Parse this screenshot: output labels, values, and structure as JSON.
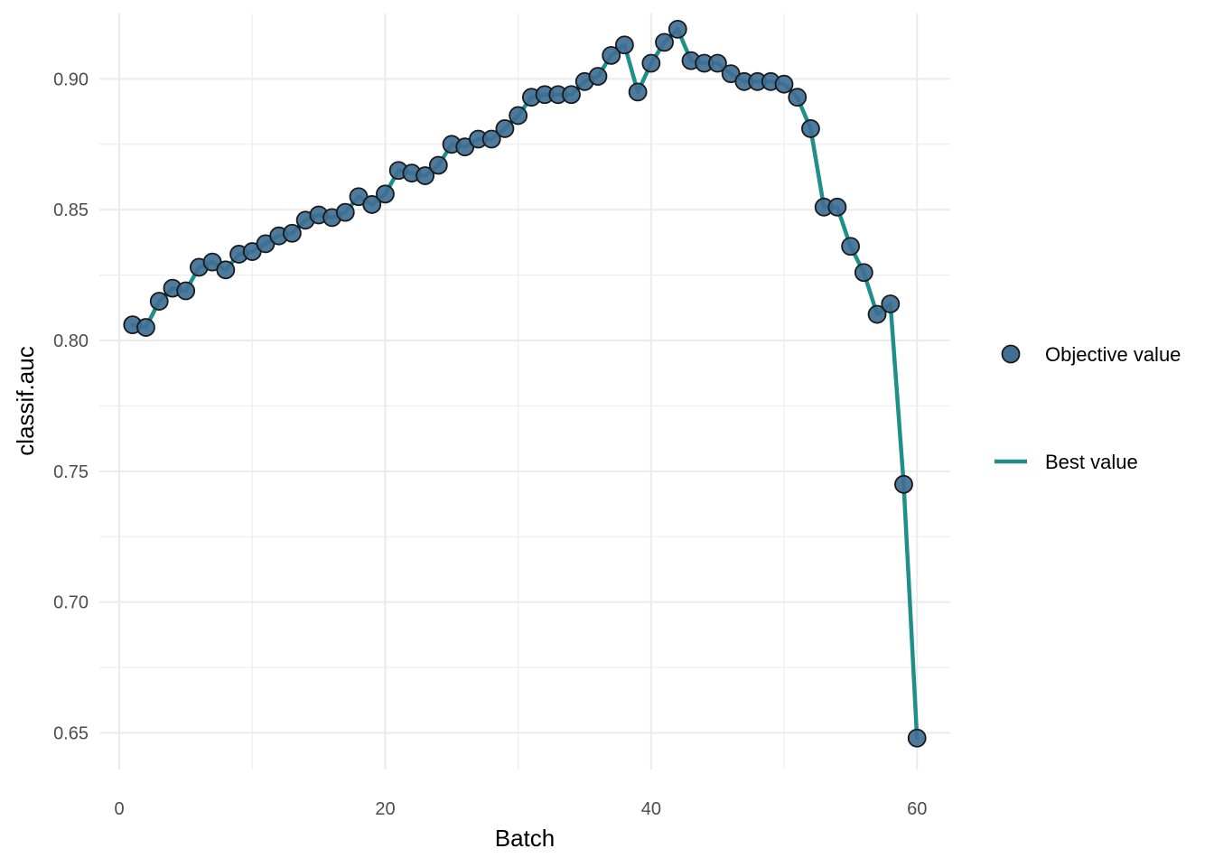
{
  "chart_data": {
    "type": "line",
    "title": "",
    "xlabel": "Batch",
    "ylabel": "classif.auc",
    "xlim": [
      -1.5,
      62.5
    ],
    "ylim": [
      0.636,
      0.925
    ],
    "x_ticks": [
      0,
      20,
      40,
      60
    ],
    "x_tick_labels": [
      "0",
      "20",
      "40",
      "60"
    ],
    "y_ticks": [
      0.65,
      0.7,
      0.75,
      0.8,
      0.85,
      0.9
    ],
    "y_tick_labels": [
      "0.65",
      "0.70",
      "0.75",
      "0.80",
      "0.85",
      "0.90"
    ],
    "grid": true,
    "legend_position": "right",
    "colors": {
      "points": "#3f6f95",
      "point_stroke": "#1a1a1a",
      "line": "#1f8f8a",
      "grid": "#ebebeb"
    },
    "x": [
      1,
      2,
      3,
      4,
      5,
      6,
      7,
      8,
      9,
      10,
      11,
      12,
      13,
      14,
      15,
      16,
      17,
      18,
      19,
      20,
      21,
      22,
      23,
      24,
      25,
      26,
      27,
      28,
      29,
      30,
      31,
      32,
      33,
      34,
      35,
      36,
      37,
      38,
      39,
      40,
      41,
      42,
      43,
      44,
      45,
      46,
      47,
      48,
      49,
      50,
      51,
      52,
      53,
      54,
      55,
      56,
      57,
      58,
      59,
      60
    ],
    "series": [
      {
        "name": "Objective value",
        "kind": "points",
        "values": [
          0.806,
          0.805,
          0.815,
          0.82,
          0.819,
          0.828,
          0.83,
          0.827,
          0.833,
          0.834,
          0.837,
          0.84,
          0.841,
          0.846,
          0.848,
          0.847,
          0.849,
          0.855,
          0.852,
          0.856,
          0.865,
          0.864,
          0.863,
          0.867,
          0.875,
          0.874,
          0.877,
          0.877,
          0.881,
          0.886,
          0.893,
          0.894,
          0.894,
          0.894,
          0.899,
          0.901,
          0.909,
          0.913,
          0.895,
          0.906,
          0.914,
          0.919,
          0.907,
          0.906,
          0.906,
          0.902,
          0.899,
          0.899,
          0.899,
          0.898,
          0.893,
          0.881,
          0.851,
          0.851,
          0.836,
          0.826,
          0.81,
          0.814,
          0.745,
          0.648
        ]
      },
      {
        "name": "Best value",
        "kind": "line",
        "values": [
          0.806,
          0.805,
          0.815,
          0.82,
          0.819,
          0.828,
          0.83,
          0.827,
          0.833,
          0.834,
          0.837,
          0.84,
          0.841,
          0.846,
          0.848,
          0.847,
          0.849,
          0.855,
          0.852,
          0.856,
          0.865,
          0.864,
          0.863,
          0.867,
          0.875,
          0.874,
          0.877,
          0.877,
          0.881,
          0.886,
          0.893,
          0.894,
          0.894,
          0.894,
          0.899,
          0.901,
          0.909,
          0.913,
          0.895,
          0.906,
          0.914,
          0.919,
          0.907,
          0.906,
          0.906,
          0.902,
          0.899,
          0.899,
          0.899,
          0.898,
          0.893,
          0.881,
          0.851,
          0.851,
          0.836,
          0.826,
          0.81,
          0.814,
          0.745,
          0.648
        ]
      }
    ]
  }
}
